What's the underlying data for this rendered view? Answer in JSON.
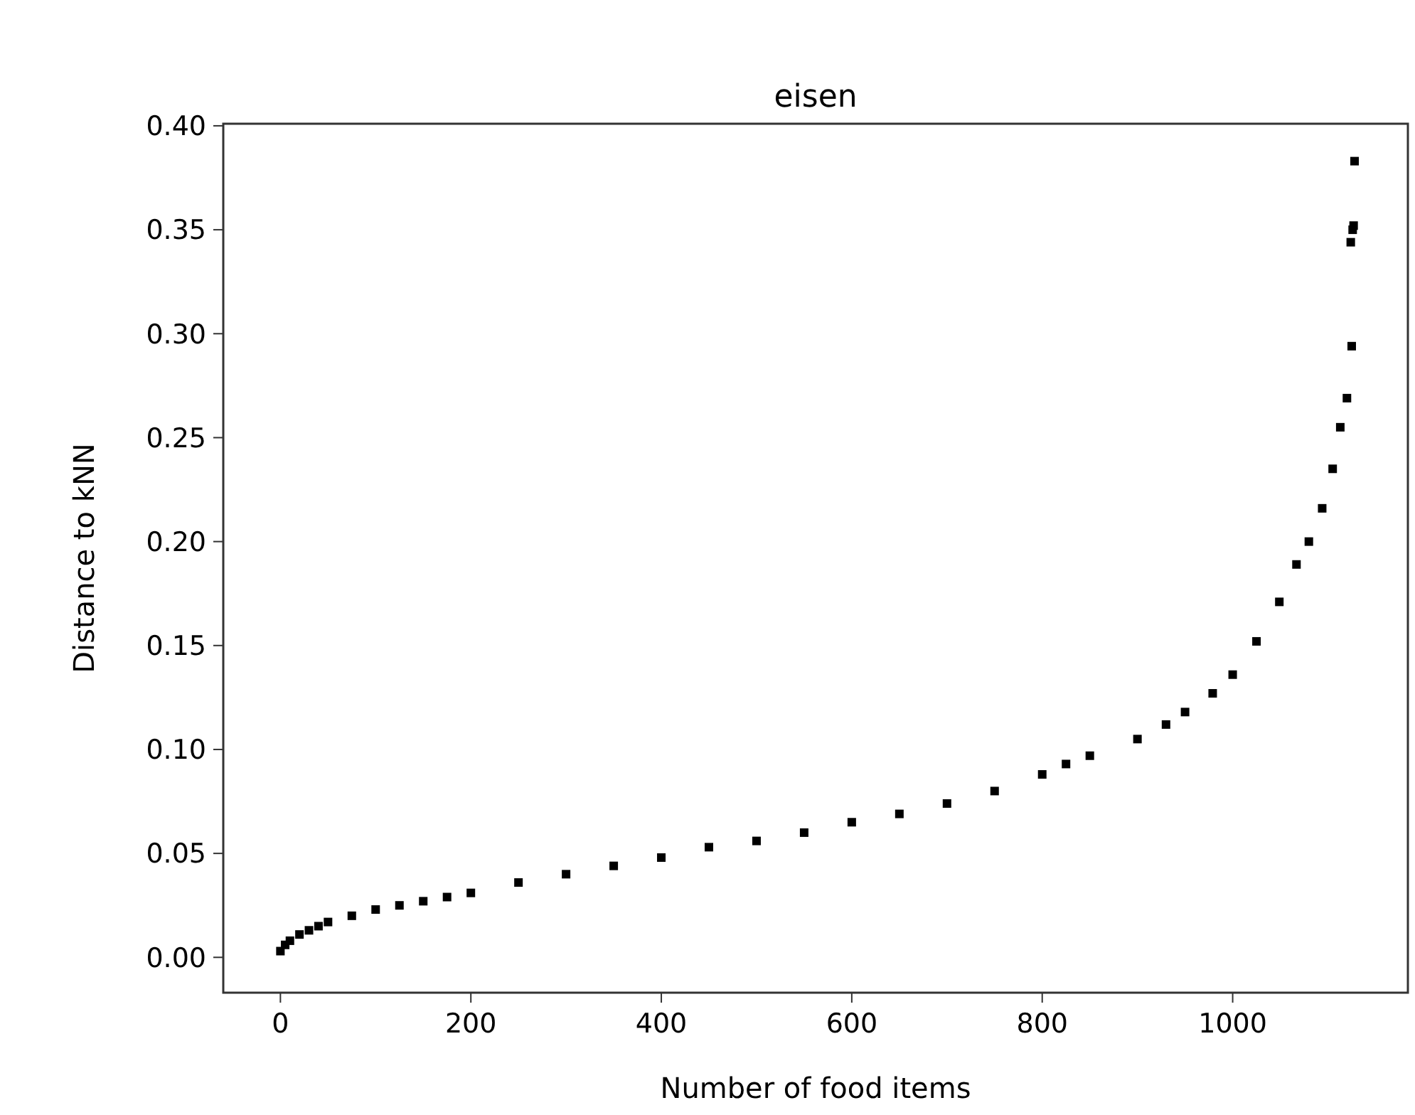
{
  "chart_data": {
    "type": "scatter",
    "title": "eisen",
    "xlabel": "Number of food items",
    "ylabel": "Distance to kNN",
    "x": [
      0,
      5,
      10,
      20,
      30,
      40,
      50,
      75,
      100,
      125,
      150,
      175,
      200,
      250,
      300,
      350,
      400,
      450,
      500,
      550,
      600,
      650,
      700,
      750,
      800,
      825,
      850,
      900,
      930,
      950,
      979,
      1000,
      1025,
      1049,
      1067,
      1080,
      1094,
      1105,
      1113,
      1120,
      1125,
      1124,
      1126,
      1127,
      1128
    ],
    "series": [
      {
        "color": "#000000",
        "values": [
          0.003,
          0.006,
          0.008,
          0.011,
          0.013,
          0.015,
          0.017,
          0.02,
          0.023,
          0.025,
          0.027,
          0.029,
          0.031,
          0.036,
          0.04,
          0.044,
          0.048,
          0.053,
          0.056,
          0.06,
          0.065,
          0.069,
          0.074,
          0.08,
          0.088,
          0.093,
          0.097,
          0.105,
          0.112,
          0.118,
          0.127,
          0.136,
          0.152,
          0.171,
          0.189,
          0.2,
          0.216,
          0.235,
          0.255,
          0.269,
          0.294,
          0.344,
          0.35,
          0.352,
          0.383
        ]
      }
    ],
    "xlim": [
      -60,
      1184
    ],
    "ylim": [
      -0.017,
      0.401
    ],
    "xticks": [
      0,
      200,
      400,
      600,
      800,
      1000
    ],
    "yticks": [
      {
        "value": 0,
        "label": "0.00"
      },
      {
        "value": 0.05,
        "label": "0.05"
      },
      {
        "value": 0.1,
        "label": "0.10"
      },
      {
        "value": 0.15,
        "label": "0.15"
      },
      {
        "value": 0.2,
        "label": "0.20"
      },
      {
        "value": 0.25,
        "label": "0.25"
      },
      {
        "value": 0.3,
        "label": "0.30"
      },
      {
        "value": 0.35,
        "label": "0.35"
      },
      {
        "value": 0.4,
        "label": "0.40"
      }
    ],
    "grid": false,
    "marker": "square"
  }
}
